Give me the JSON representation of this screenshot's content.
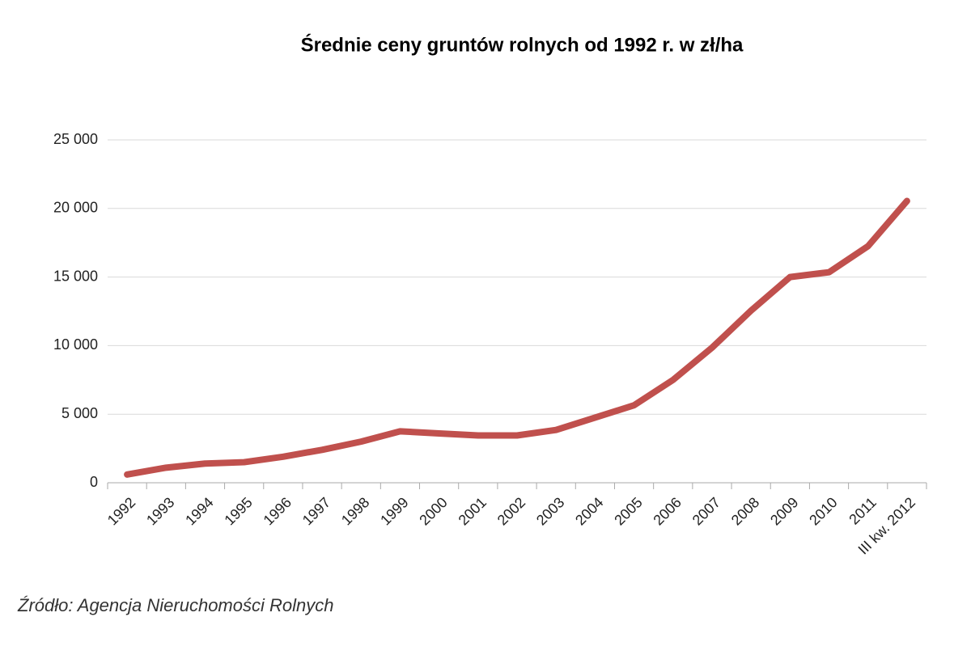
{
  "chart_data": {
    "type": "line",
    "title": "Średnie ceny gruntów rolnych od 1992 r. w zł/ha",
    "source": "Źródło: Agencja Nieruchomości Rolnych",
    "categories": [
      "1992",
      "1993",
      "1994",
      "1995",
      "1996",
      "1997",
      "1998",
      "1999",
      "2000",
      "2001",
      "2002",
      "2003",
      "2004",
      "2005",
      "2006",
      "2007",
      "2008",
      "2009",
      "2010",
      "2011",
      "III kw. 2012"
    ],
    "series": [
      {
        "color": "#c0504d",
        "values": [
          600,
          1100,
          1400,
          1500,
          1900,
          2400,
          3000,
          3750,
          3600,
          3450,
          3450,
          3850,
          4750,
          5650,
          7500,
          9850,
          12550,
          15000,
          15350,
          17250,
          20550
        ]
      }
    ],
    "ylim": [
      0,
      25000
    ],
    "yticks": [
      0,
      {
        "value": 5000,
        "label": "5 000"
      },
      {
        "value": 10000,
        "label": "10 000"
      },
      {
        "value": 15000,
        "label": "15 000"
      },
      {
        "value": 20000,
        "label": "20 000"
      },
      {
        "value": 25000,
        "label": "25 000"
      }
    ],
    "grid": true
  }
}
